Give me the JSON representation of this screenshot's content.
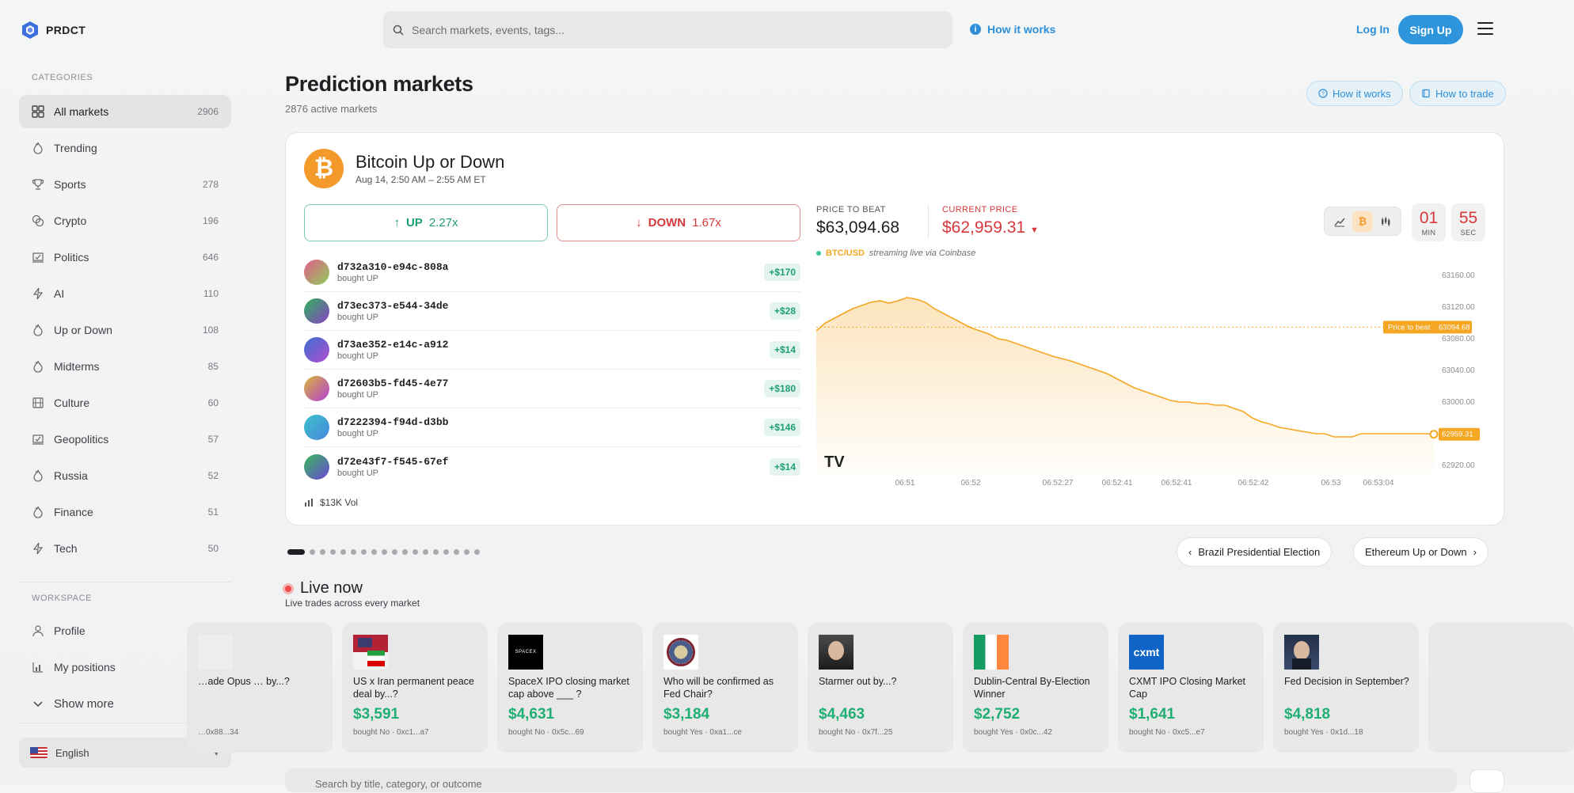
{
  "app": {
    "name": "PRDCT"
  },
  "header": {
    "search_placeholder": "Search markets, events, tags...",
    "how_it_works": "How it works",
    "login": "Log In",
    "signup": "Sign Up"
  },
  "sidebar": {
    "categories_heading": "CATEGORIES",
    "items": [
      {
        "label": "All markets",
        "count": "2906",
        "icon": "grid-icon"
      },
      {
        "label": "Trending",
        "count": "",
        "icon": "flame-icon"
      },
      {
        "label": "Sports",
        "count": "278",
        "icon": "trophy-icon"
      },
      {
        "label": "Crypto",
        "count": "196",
        "icon": "coins-icon"
      },
      {
        "label": "Politics",
        "count": "646",
        "icon": "ballot-icon"
      },
      {
        "label": "AI",
        "count": "110",
        "icon": "bolt-icon"
      },
      {
        "label": "Up or Down",
        "count": "108",
        "icon": "flame-icon"
      },
      {
        "label": "Midterms",
        "count": "85",
        "icon": "flame-icon"
      },
      {
        "label": "Culture",
        "count": "60",
        "icon": "film-icon"
      },
      {
        "label": "Geopolitics",
        "count": "57",
        "icon": "ballot-icon"
      },
      {
        "label": "Russia",
        "count": "52",
        "icon": "flame-icon"
      },
      {
        "label": "Finance",
        "count": "51",
        "icon": "flame-icon"
      },
      {
        "label": "Tech",
        "count": "50",
        "icon": "bolt-icon"
      }
    ],
    "workspace_heading": "WORKSPACE",
    "workspace": [
      {
        "label": "Profile",
        "icon": "user-icon"
      },
      {
        "label": "My positions",
        "icon": "bar-chart-icon"
      },
      {
        "label": "Show more",
        "icon": "chevron-down-icon"
      }
    ],
    "language": "English"
  },
  "main": {
    "title": "Prediction markets",
    "subtitle": "2876 active markets",
    "buttons": {
      "how_it_works": "How it works",
      "how_to_trade": "How to trade"
    }
  },
  "market": {
    "title": "Bitcoin Up or Down",
    "time": "Aug 14, 2:50 AM – 2:55 AM ET",
    "up_label": "UP",
    "up_mult": "2.27x",
    "down_label": "DOWN",
    "down_mult": "1.67x",
    "trades": [
      {
        "id": "d732a310-e94c-808a",
        "action": "bought UP",
        "amount": "+$170",
        "colors": [
          "#e25b8a",
          "#8fd05a"
        ]
      },
      {
        "id": "d73ec373-e544-34de",
        "action": "bought UP",
        "amount": "+$28",
        "colors": [
          "#2fb35a",
          "#8b3fc7"
        ]
      },
      {
        "id": "d73ae352-e14c-a912",
        "action": "bought UP",
        "amount": "+$14",
        "colors": [
          "#3a6ed0",
          "#b44fd0"
        ]
      },
      {
        "id": "d72603b5-fd45-4e77",
        "action": "bought UP",
        "amount": "+$180",
        "colors": [
          "#d8b53a",
          "#b43fd4"
        ]
      },
      {
        "id": "d7222394-f94d-d3bb",
        "action": "bought UP",
        "amount": "+$146",
        "colors": [
          "#3ac2c8",
          "#4a86e0"
        ]
      },
      {
        "id": "d72e43f7-f545-67ef",
        "action": "bought UP",
        "amount": "+$14",
        "colors": [
          "#39b85a",
          "#6a48d6"
        ]
      }
    ],
    "volume": "$13K Vol",
    "price_to_beat_label": "PRICE TO BEAT",
    "price_to_beat": "$63,094.68",
    "current_price_label": "CURRENT PRICE",
    "current_price": "$62,959.31",
    "pair": "BTC/USD",
    "stream_text": "streaming live via Coinbase",
    "timer": {
      "min": "01",
      "min_label": "MIN",
      "sec": "55",
      "sec_label": "SEC"
    },
    "chart_badges": {
      "beat_label": "Price to beat",
      "beat_value": "63094.68",
      "current_value": "62959.31"
    },
    "chart_watermark": "TV"
  },
  "chart_data": {
    "type": "area",
    "title": "",
    "xlabel": "",
    "ylabel": "",
    "x_ticks": [
      "06:51",
      "06:52",
      "06:52:27",
      "06:52:41",
      "06:52:41",
      "06:52:42",
      "06:53",
      "06:53:04"
    ],
    "y_ticks": [
      "63160.00",
      "63120.00",
      "63080.00",
      "63040.00",
      "63000.00",
      "62960.00",
      "62920.00"
    ],
    "ylim": [
      62910,
      63170
    ],
    "reference_line": 63094.68,
    "series": [
      {
        "color": "#f5a623",
        "values": [
          63090,
          63100,
          63106,
          63112,
          63118,
          63122,
          63126,
          63128,
          63125,
          63128,
          63132,
          63130,
          63126,
          63118,
          63112,
          63106,
          63100,
          63094,
          63090,
          63086,
          63080,
          63078,
          63074,
          63070,
          63066,
          63062,
          63058,
          63055,
          63052,
          63048,
          63044,
          63040,
          63036,
          63030,
          63024,
          63018,
          63014,
          63010,
          63006,
          63002,
          63000,
          63000,
          62998,
          62998,
          62996,
          62996,
          62992,
          62988,
          62980,
          62975,
          62972,
          62968,
          62966,
          62964,
          62962,
          62960,
          62960,
          62956,
          62956,
          62956,
          62960,
          62960,
          62960,
          62960,
          62960,
          62960,
          62960,
          62960,
          62959.31
        ]
      }
    ]
  },
  "carousel": {
    "prev_label": "Brazil Presidential Election",
    "next_label": "Ethereum Up or Down",
    "dot_count": 18,
    "active_index": 0
  },
  "live": {
    "title": "Live now",
    "subtitle": "Live trades across every market",
    "cards": [
      {
        "question": "…ade Opus … by...?",
        "amount": "",
        "meta": "…0x88...34"
      },
      {
        "question": "US x Iran permanent peace deal by...?",
        "amount": "$3,591",
        "meta": "bought No · 0xc1...a7"
      },
      {
        "question": "SpaceX IPO closing market cap above ___ ?",
        "amount": "$4,631",
        "meta": "bought No · 0x5c...69"
      },
      {
        "question": "Who will be confirmed as Fed Chair?",
        "amount": "$3,184",
        "meta": "bought Yes · 0xa1...ce"
      },
      {
        "question": "Starmer out by...?",
        "amount": "$4,463",
        "meta": "bought No · 0x7f...25"
      },
      {
        "question": "Dublin-Central By-Election Winner",
        "amount": "$2,752",
        "meta": "bought Yes · 0x0c...42"
      },
      {
        "question": "CXMT IPO Closing Market Cap",
        "amount": "$1,641",
        "meta": "bought No · 0xc5...e7"
      },
      {
        "question": "Fed Decision in September?",
        "amount": "$4,818",
        "meta": "bought Yes · 0x1d...18"
      }
    ],
    "thumb_labels": {
      "spacex": "SPACEX",
      "cxmt": "cxmt"
    }
  },
  "filter_search_placeholder": "Search by title, category, or outcome"
}
